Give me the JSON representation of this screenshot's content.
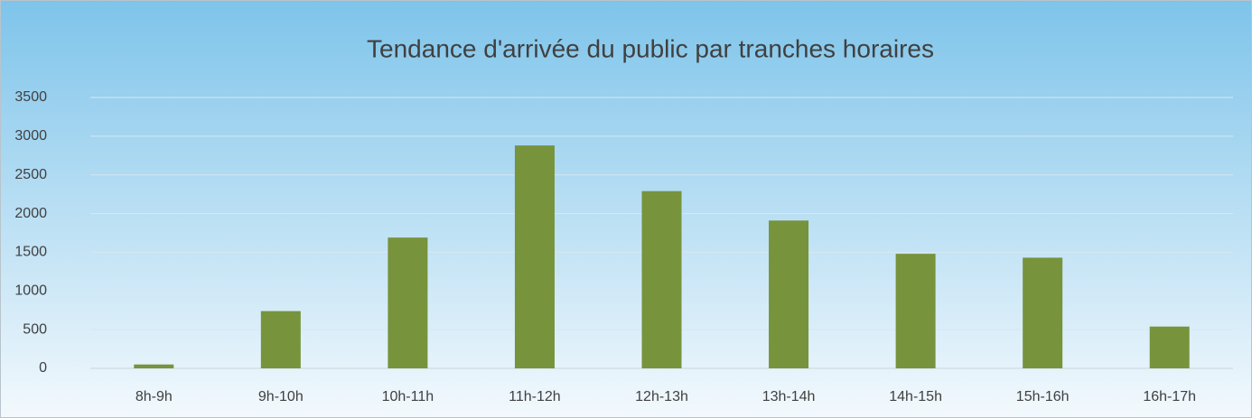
{
  "chart_data": {
    "type": "bar",
    "title": "Tendance d'arrivée du public par tranches horaires",
    "categories": [
      "8h-9h",
      "9h-10h",
      "10h-11h",
      "11h-12h",
      "12h-13h",
      "13h-14h",
      "14h-15h",
      "15h-16h",
      "16h-17h"
    ],
    "values": [
      50,
      740,
      1690,
      2880,
      2290,
      1910,
      1480,
      1430,
      540
    ],
    "color": "#77933c",
    "ylim": [
      0,
      3500
    ],
    "yticks": [
      0,
      500,
      1000,
      1500,
      2000,
      2500,
      3000,
      3500
    ],
    "grid": true
  }
}
